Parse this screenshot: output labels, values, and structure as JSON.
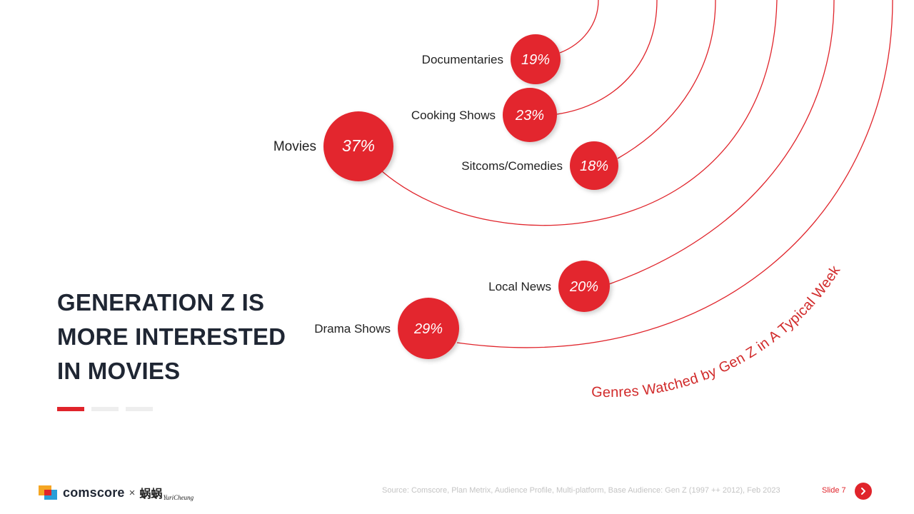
{
  "headline": {
    "lines": [
      "GENERATION Z IS",
      "MORE INTERESTED",
      "IN MOVIES"
    ]
  },
  "chart_data": {
    "type": "bubble-arc",
    "title": "Genres Watched by Gen Z in A Typical Week",
    "categories": [
      "Documentaries",
      "Cooking Shows",
      "Movies",
      "Sitcoms/Comedies",
      "Local News",
      "Drama Shows"
    ],
    "values": [
      19,
      23,
      37,
      18,
      20,
      29
    ],
    "value_labels": [
      "19%",
      "23%",
      "37%",
      "18%",
      "20%",
      "29%"
    ],
    "unit": "%"
  },
  "footer": {
    "brand": "comscore",
    "separator": "×",
    "partner_cn": "蜗蜗",
    "partner_en": "YuriCheung",
    "source": "Source: Comscore, Plan Metrix, Audience Profile, Multi-platform, Base Audience: Gen Z (1997 ++ 2012), Feb 2023",
    "slide": "Slide 7"
  },
  "colors": {
    "accent": "#e0242b",
    "bubble": "#e3262e",
    "headline": "#1f2633",
    "muted": "#c4c4c4"
  },
  "icons": {
    "next": "chevron-right-icon"
  }
}
